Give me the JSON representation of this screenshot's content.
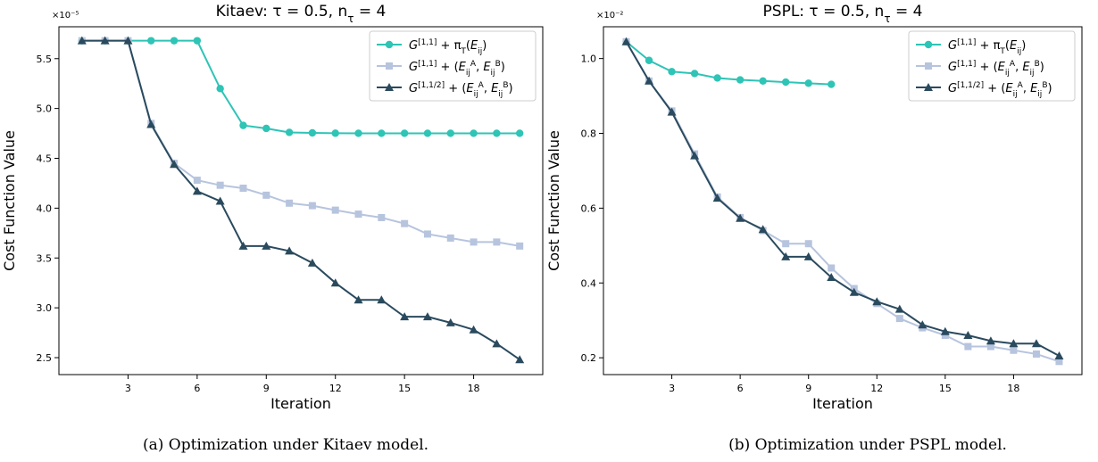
{
  "chart_data": [
    {
      "type": "line",
      "title": "Kitaev: τ = 0.5, n_τ = 4",
      "xlabel": "Iteration",
      "ylabel": "Cost Function Value",
      "y_multiplier": "×10⁻⁵",
      "xlim": [
        0,
        21
      ],
      "ylim": [
        2.33,
        5.82
      ],
      "x_ticks": [
        3,
        6,
        9,
        12,
        15,
        18
      ],
      "y_ticks": [
        2.5,
        3.0,
        3.5,
        4.0,
        4.5,
        5.0,
        5.5
      ],
      "legend_position": "top-right",
      "caption": "(a) Optimization under Kitaev model.",
      "series": [
        {
          "name": "G^[1,1] + π_T(E_ij)",
          "color": "#2ec4b6",
          "marker": "circle",
          "x": [
            1,
            2,
            3,
            4,
            5,
            6,
            7,
            8,
            9,
            10,
            11,
            12,
            13,
            14,
            15,
            16,
            17,
            18,
            19,
            20
          ],
          "values": [
            5.68,
            5.68,
            5.68,
            5.68,
            5.68,
            5.68,
            5.2,
            4.83,
            4.8,
            4.76,
            4.755,
            4.752,
            4.751,
            4.751,
            4.751,
            4.751,
            4.751,
            4.751,
            4.751,
            4.751
          ]
        },
        {
          "name": "G^[1,1] + (E_ij^A, E_ij^B)",
          "color": "#b7c4de",
          "marker": "square",
          "x": [
            1,
            2,
            3,
            4,
            5,
            6,
            7,
            8,
            9,
            10,
            11,
            12,
            13,
            14,
            15,
            16,
            17,
            18,
            19,
            20
          ],
          "values": [
            5.68,
            5.68,
            5.68,
            4.85,
            4.45,
            4.28,
            4.23,
            4.2,
            4.13,
            4.05,
            4.025,
            3.98,
            3.94,
            3.905,
            3.845,
            3.74,
            3.7,
            3.66,
            3.66,
            3.62
          ]
        },
        {
          "name": "G^[1,1/2] + (E_ij^A, E_ij^B)",
          "color": "#2a4a5e",
          "marker": "triangle",
          "x": [
            1,
            2,
            3,
            4,
            5,
            6,
            7,
            8,
            9,
            10,
            11,
            12,
            13,
            14,
            15,
            16,
            17,
            18,
            19,
            20
          ],
          "values": [
            5.68,
            5.68,
            5.68,
            4.84,
            4.44,
            4.17,
            4.07,
            3.62,
            3.62,
            3.57,
            3.45,
            3.25,
            3.08,
            3.08,
            2.91,
            2.91,
            2.85,
            2.78,
            2.64,
            2.48
          ]
        }
      ]
    },
    {
      "type": "line",
      "title": "PSPL: τ = 0.5, n_τ = 4",
      "xlabel": "Iteration",
      "ylabel": "Cost Function Value",
      "y_multiplier": "×10⁻²",
      "xlim": [
        0,
        21
      ],
      "ylim": [
        0.155,
        1.085
      ],
      "x_ticks": [
        3,
        6,
        9,
        12,
        15,
        18
      ],
      "y_ticks": [
        0.2,
        0.4,
        0.6,
        0.8,
        1.0
      ],
      "legend_position": "top-right",
      "caption": "(b) Optimization under PSPL model.",
      "series": [
        {
          "name": "G^[1,1] + π_T(E_ij)",
          "color": "#2ec4b6",
          "marker": "circle",
          "x": [
            1,
            2,
            3,
            4,
            5,
            6,
            7,
            8,
            9,
            10
          ],
          "values": [
            1.045,
            0.995,
            0.965,
            0.96,
            0.948,
            0.943,
            0.94,
            0.937,
            0.934,
            0.931
          ]
        },
        {
          "name": "G^[1,1] + (E_ij^A, E_ij^B)",
          "color": "#b7c4de",
          "marker": "square",
          "x": [
            1,
            2,
            3,
            4,
            5,
            6,
            7,
            8,
            9,
            10,
            11,
            12,
            13,
            14,
            15,
            16,
            17,
            18,
            19,
            20
          ],
          "values": [
            1.045,
            0.94,
            0.86,
            0.745,
            0.63,
            0.575,
            0.54,
            0.505,
            0.505,
            0.44,
            0.385,
            0.345,
            0.305,
            0.28,
            0.26,
            0.23,
            0.23,
            0.22,
            0.21,
            0.19
          ]
        },
        {
          "name": "G^[1,1/2] + (E_ij^A, E_ij^B)",
          "color": "#2a4a5e",
          "marker": "triangle",
          "x": [
            1,
            2,
            3,
            4,
            5,
            6,
            7,
            8,
            9,
            10,
            11,
            12,
            13,
            14,
            15,
            16,
            17,
            18,
            19,
            20
          ],
          "values": [
            1.045,
            0.94,
            0.857,
            0.74,
            0.627,
            0.573,
            0.543,
            0.47,
            0.47,
            0.415,
            0.375,
            0.35,
            0.33,
            0.288,
            0.27,
            0.26,
            0.245,
            0.238,
            0.238,
            0.205
          ]
        }
      ]
    }
  ]
}
